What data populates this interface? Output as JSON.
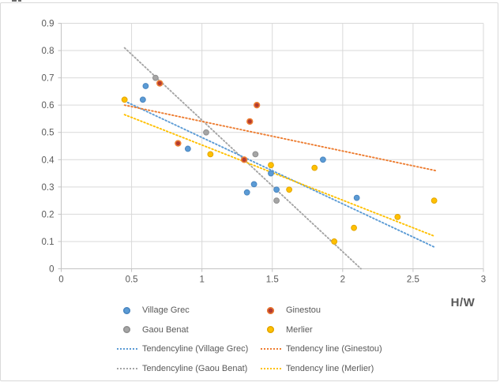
{
  "frame": {
    "background": "#ffffff",
    "border_color": "#d9d9d9"
  },
  "colors": {
    "gridline": "#d9d9d9",
    "axis_line": "#c3c3c3",
    "tick_text": "#595959",
    "legend_text": "#595959",
    "village_grec": "#5b9bd5",
    "ginestou_fill": "#b23b32",
    "ginestou_edge": "#ed7d31",
    "gaou_benat": "#a5a5a5",
    "merlier": "#ffc000"
  },
  "chart_data": {
    "type": "scatter",
    "title": "",
    "xlabel": "H/W",
    "ylabel": "",
    "xlim": [
      0,
      3
    ],
    "ylim": [
      0,
      0.9
    ],
    "grid": true,
    "legend_position": "bottom",
    "x_ticks": [
      {
        "value": 0,
        "label": "0"
      },
      {
        "value": 0.5,
        "label": "0.5"
      },
      {
        "value": 1,
        "label": "1"
      },
      {
        "value": 1.5,
        "label": "1.5"
      },
      {
        "value": 2,
        "label": "2"
      },
      {
        "value": 2.5,
        "label": "2.5"
      },
      {
        "value": 3,
        "label": "3"
      }
    ],
    "y_ticks": [
      {
        "value": 0,
        "label": "0"
      },
      {
        "value": 0.1,
        "label": "0.1"
      },
      {
        "value": 0.2,
        "label": "0.2"
      },
      {
        "value": 0.3,
        "label": "0.3"
      },
      {
        "value": 0.4,
        "label": "0.4"
      },
      {
        "value": 0.5,
        "label": "0.5"
      },
      {
        "value": 0.6,
        "label": "0.6"
      },
      {
        "value": 0.7,
        "label": "0.7"
      },
      {
        "value": 0.8,
        "label": "0.8"
      },
      {
        "value": 0.9,
        "label": "0.9"
      }
    ],
    "series": [
      {
        "name": "Gaou Benat",
        "fill": "#a5a5a5",
        "edge": "#8f8f8f",
        "points": [
          [
            0.67,
            0.7
          ],
          [
            1.03,
            0.5
          ],
          [
            1.38,
            0.42
          ],
          [
            1.53,
            0.25
          ]
        ]
      },
      {
        "name": "Village Grec",
        "fill": "#5b9bd5",
        "edge": "#4a86c0",
        "points": [
          [
            0.6,
            0.67
          ],
          [
            0.58,
            0.62
          ],
          [
            0.9,
            0.44
          ],
          [
            1.32,
            0.28
          ],
          [
            1.37,
            0.31
          ],
          [
            1.49,
            0.35
          ],
          [
            1.53,
            0.29
          ],
          [
            1.86,
            0.4
          ],
          [
            2.1,
            0.26
          ]
        ]
      },
      {
        "name": "Ginestou",
        "fill": "#b23b32",
        "edge": "#ed7d31",
        "points": [
          [
            0.7,
            0.68
          ],
          [
            0.83,
            0.46
          ],
          [
            1.3,
            0.4
          ],
          [
            1.34,
            0.54
          ],
          [
            1.39,
            0.6
          ]
        ]
      },
      {
        "name": "Merlier",
        "fill": "#ffc000",
        "edge": "#e3a600",
        "points": [
          [
            0.45,
            0.62
          ],
          [
            1.06,
            0.42
          ],
          [
            1.49,
            0.38
          ],
          [
            1.62,
            0.29
          ],
          [
            1.8,
            0.37
          ],
          [
            1.94,
            0.1
          ],
          [
            2.08,
            0.15
          ],
          [
            2.39,
            0.19
          ],
          [
            2.65,
            0.25
          ]
        ]
      }
    ],
    "trendlines": [
      {
        "name": "Tendencyline (Gaou Benat)",
        "color": "#a5a5a5",
        "from": [
          0.45,
          0.81
        ],
        "to": [
          2.13,
          0.0
        ]
      },
      {
        "name": "Tendencyline (Village Grec)",
        "color": "#5b9bd5",
        "from": [
          0.45,
          0.615
        ],
        "to": [
          2.65,
          0.08
        ]
      },
      {
        "name": "Tendency line (Ginestou)",
        "color": "#ed7d31",
        "from": [
          0.45,
          0.6
        ],
        "to": [
          2.66,
          0.36
        ]
      },
      {
        "name": "Tendency line (Merlier)",
        "color": "#ffc000",
        "from": [
          0.45,
          0.565
        ],
        "to": [
          2.65,
          0.12
        ]
      }
    ],
    "legend": {
      "entries": [
        {
          "label": "Village Grec",
          "type": "dot",
          "color": "#5b9bd5",
          "edge": "#4a86c0"
        },
        {
          "label": "Ginestou",
          "type": "dot",
          "color": "#b23b32",
          "edge": "#ed7d31"
        },
        {
          "label": "Gaou Benat",
          "type": "dot",
          "color": "#a5a5a5",
          "edge": "#8f8f8f"
        },
        {
          "label": "Merlier",
          "type": "dot",
          "color": "#ffc000",
          "edge": "#e3a600"
        },
        {
          "label": "Tendencyline (Village Grec)",
          "type": "dotted-line",
          "color": "#5b9bd5"
        },
        {
          "label": "Tendency line (Ginestou)",
          "type": "dotted-line",
          "color": "#ed7d31"
        },
        {
          "label": "Tendencyline (Gaou Benat)",
          "type": "dotted-line",
          "color": "#a5a5a5"
        },
        {
          "label": "Tendency line (Merlier)",
          "type": "dotted-line",
          "color": "#ffc000"
        }
      ]
    }
  }
}
